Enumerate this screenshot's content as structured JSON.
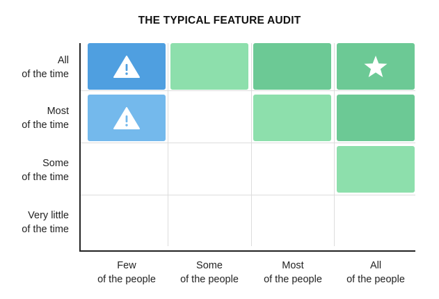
{
  "title": "THE TYPICAL FEATURE AUDIT",
  "rows": [
    {
      "line1": "All",
      "line2": "of the time"
    },
    {
      "line1": "Most",
      "line2": "of the time"
    },
    {
      "line1": "Some",
      "line2": "of the time"
    },
    {
      "line1": "Very little",
      "line2": "of the time"
    }
  ],
  "columns": [
    {
      "line1": "Few",
      "line2": "of the people"
    },
    {
      "line1": "Some",
      "line2": "of the people"
    },
    {
      "line1": "Most",
      "line2": "of the people"
    },
    {
      "line1": "All",
      "line2": "of the people"
    }
  ],
  "cells": [
    {
      "row": 0,
      "col": 0,
      "color": "#4f9fe0",
      "icon": "warning-icon"
    },
    {
      "row": 0,
      "col": 1,
      "color": "#8ddfac",
      "icon": ""
    },
    {
      "row": 0,
      "col": 2,
      "color": "#6cc995",
      "icon": ""
    },
    {
      "row": 0,
      "col": 3,
      "color": "#6cc995",
      "icon": "star-icon"
    },
    {
      "row": 1,
      "col": 0,
      "color": "#74b9ec",
      "icon": "warning-icon"
    },
    {
      "row": 1,
      "col": 2,
      "color": "#8ddfac",
      "icon": ""
    },
    {
      "row": 1,
      "col": 3,
      "color": "#6cc995",
      "icon": ""
    },
    {
      "row": 2,
      "col": 3,
      "color": "#8ddfac",
      "icon": ""
    }
  ],
  "colors": {
    "blue_dark": "#4f9fe0",
    "blue_light": "#74b9ec",
    "green_dark": "#6cc995",
    "green_light": "#8ddfac",
    "axis": "#222222",
    "grid": "#dcdcdc"
  }
}
